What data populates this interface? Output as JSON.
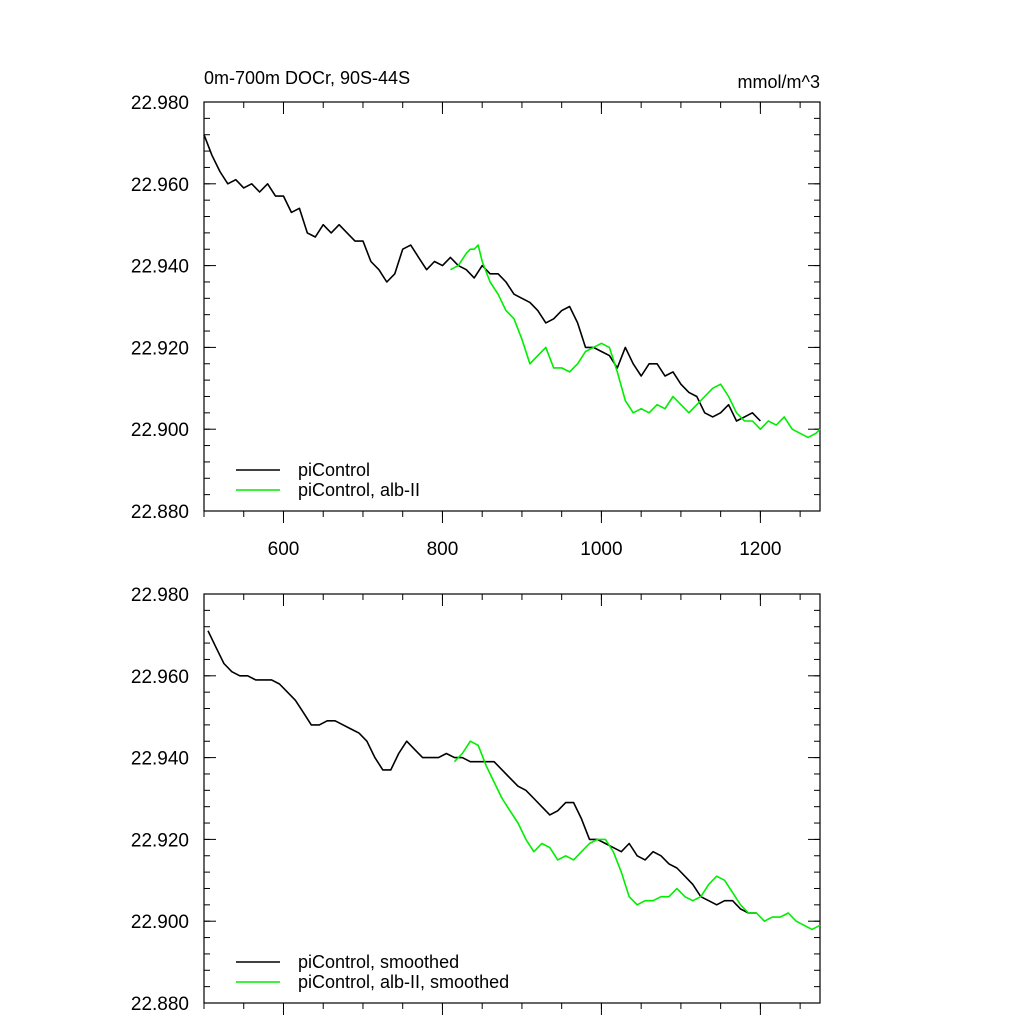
{
  "chart_data": [
    {
      "type": "line",
      "title": "0m-700m DOCr, 90S-44S",
      "units": "mmol/m^3",
      "xlim": [
        500,
        1275
      ],
      "ylim": [
        22.88,
        22.98
      ],
      "xticks": [
        600,
        800,
        1000,
        1200
      ],
      "xtick_labels": [
        "600",
        "800",
        "1000",
        "1200"
      ],
      "yticks": [
        22.88,
        22.9,
        22.92,
        22.94,
        22.96,
        22.98
      ],
      "ytick_labels": [
        "22.880",
        "22.900",
        "22.920",
        "22.940",
        "22.960",
        "22.980"
      ],
      "legend_position": "bottom-left",
      "series": [
        {
          "name": "piControl",
          "color": "#000000",
          "x": [
            500,
            510,
            520,
            530,
            540,
            550,
            560,
            570,
            580,
            590,
            600,
            610,
            620,
            630,
            640,
            650,
            660,
            670,
            680,
            690,
            700,
            710,
            720,
            730,
            740,
            750,
            760,
            770,
            780,
            790,
            800,
            810,
            820,
            830,
            840,
            850,
            860,
            870,
            880,
            890,
            900,
            910,
            920,
            930,
            940,
            950,
            960,
            970,
            980,
            990,
            1000,
            1010,
            1020,
            1030,
            1040,
            1050,
            1060,
            1070,
            1080,
            1090,
            1100,
            1110,
            1120,
            1130,
            1140,
            1150,
            1160,
            1170,
            1180,
            1190,
            1200
          ],
          "y": [
            22.972,
            22.967,
            22.963,
            22.96,
            22.961,
            22.959,
            22.96,
            22.958,
            22.96,
            22.957,
            22.957,
            22.953,
            22.954,
            22.948,
            22.947,
            22.95,
            22.948,
            22.95,
            22.948,
            22.946,
            22.946,
            22.941,
            22.939,
            22.936,
            22.938,
            22.944,
            22.945,
            22.942,
            22.939,
            22.941,
            22.94,
            22.942,
            22.94,
            22.939,
            22.937,
            22.94,
            22.938,
            22.938,
            22.936,
            22.933,
            22.932,
            22.931,
            22.929,
            22.926,
            22.927,
            22.929,
            22.93,
            22.926,
            22.92,
            22.92,
            22.919,
            22.918,
            22.915,
            22.92,
            22.916,
            22.913,
            22.916,
            22.916,
            22.913,
            22.914,
            22.911,
            22.909,
            22.908,
            22.904,
            22.903,
            22.904,
            22.906,
            22.902,
            22.903,
            22.904,
            22.902
          ]
        },
        {
          "name": "piControl, alb-II",
          "color": "#00ee00",
          "x": [
            810,
            820,
            830,
            835,
            840,
            845,
            850,
            860,
            870,
            880,
            890,
            900,
            910,
            920,
            930,
            940,
            950,
            960,
            970,
            980,
            990,
            1000,
            1010,
            1020,
            1030,
            1040,
            1050,
            1060,
            1070,
            1080,
            1090,
            1100,
            1110,
            1120,
            1130,
            1140,
            1150,
            1160,
            1170,
            1180,
            1190,
            1200,
            1210,
            1220,
            1230,
            1240,
            1250,
            1260,
            1270,
            1275
          ],
          "y": [
            22.939,
            22.94,
            22.943,
            22.944,
            22.944,
            22.945,
            22.941,
            22.936,
            22.933,
            22.929,
            22.927,
            22.922,
            22.916,
            22.918,
            22.92,
            22.915,
            22.915,
            22.914,
            22.916,
            22.919,
            22.92,
            22.921,
            22.92,
            22.914,
            22.907,
            22.904,
            22.905,
            22.904,
            22.906,
            22.905,
            22.908,
            22.906,
            22.904,
            22.906,
            22.908,
            22.91,
            22.911,
            22.908,
            22.904,
            22.902,
            22.902,
            22.9,
            22.902,
            22.901,
            22.903,
            22.9,
            22.899,
            22.898,
            22.899,
            22.9
          ]
        }
      ]
    },
    {
      "type": "line",
      "title": "",
      "xlim": [
        500,
        1275
      ],
      "ylim": [
        22.88,
        22.98
      ],
      "xticks": [
        600,
        800,
        1000,
        1200
      ],
      "yticks": [
        22.88,
        22.9,
        22.92,
        22.94,
        22.96,
        22.98
      ],
      "ytick_labels": [
        "22.880",
        "22.900",
        "22.920",
        "22.940",
        "22.960",
        "22.980"
      ],
      "legend_position": "bottom-left",
      "series": [
        {
          "name": "piControl, smoothed",
          "color": "#000000",
          "x": [
            505,
            515,
            525,
            535,
            545,
            555,
            565,
            575,
            585,
            595,
            605,
            615,
            625,
            635,
            645,
            655,
            665,
            675,
            685,
            695,
            705,
            715,
            725,
            735,
            745,
            755,
            765,
            775,
            785,
            795,
            805,
            815,
            825,
            835,
            845,
            855,
            865,
            875,
            885,
            895,
            905,
            915,
            925,
            935,
            945,
            955,
            965,
            975,
            985,
            995,
            1005,
            1015,
            1025,
            1035,
            1045,
            1055,
            1065,
            1075,
            1085,
            1095,
            1105,
            1115,
            1125,
            1135,
            1145,
            1155,
            1165,
            1175,
            1185,
            1195
          ],
          "y": [
            22.971,
            22.967,
            22.963,
            22.961,
            22.96,
            22.96,
            22.959,
            22.959,
            22.959,
            22.958,
            22.956,
            22.954,
            22.951,
            22.948,
            22.948,
            22.949,
            22.949,
            22.948,
            22.947,
            22.946,
            22.944,
            22.94,
            22.937,
            22.937,
            22.941,
            22.944,
            22.942,
            22.94,
            22.94,
            22.94,
            22.941,
            22.94,
            22.94,
            22.939,
            22.939,
            22.939,
            22.939,
            22.937,
            22.935,
            22.933,
            22.932,
            22.93,
            22.928,
            22.926,
            22.927,
            22.929,
            22.929,
            22.925,
            22.92,
            22.92,
            22.919,
            22.918,
            22.917,
            22.919,
            22.916,
            22.915,
            22.917,
            22.916,
            22.914,
            22.913,
            22.911,
            22.909,
            22.906,
            22.905,
            22.904,
            22.905,
            22.905,
            22.903,
            22.902,
            22.902
          ]
        },
        {
          "name": "piControl, alb-II, smoothed",
          "color": "#00ee00",
          "x": [
            815,
            825,
            835,
            845,
            855,
            865,
            875,
            885,
            895,
            905,
            915,
            925,
            935,
            945,
            955,
            965,
            975,
            985,
            995,
            1005,
            1015,
            1025,
            1035,
            1045,
            1055,
            1065,
            1075,
            1085,
            1095,
            1105,
            1115,
            1125,
            1135,
            1145,
            1155,
            1165,
            1175,
            1185,
            1195,
            1205,
            1215,
            1225,
            1235,
            1245,
            1255,
            1265,
            1275
          ],
          "y": [
            22.939,
            22.941,
            22.944,
            22.943,
            22.938,
            22.934,
            22.93,
            22.927,
            22.924,
            22.92,
            22.917,
            22.919,
            22.918,
            22.915,
            22.916,
            22.915,
            22.917,
            22.919,
            22.92,
            22.92,
            22.917,
            22.912,
            22.906,
            22.904,
            22.905,
            22.905,
            22.906,
            22.906,
            22.908,
            22.906,
            22.905,
            22.906,
            22.909,
            22.911,
            22.91,
            22.907,
            22.904,
            22.902,
            22.902,
            22.9,
            22.901,
            22.901,
            22.902,
            22.9,
            22.899,
            22.898,
            22.899
          ]
        }
      ]
    }
  ]
}
